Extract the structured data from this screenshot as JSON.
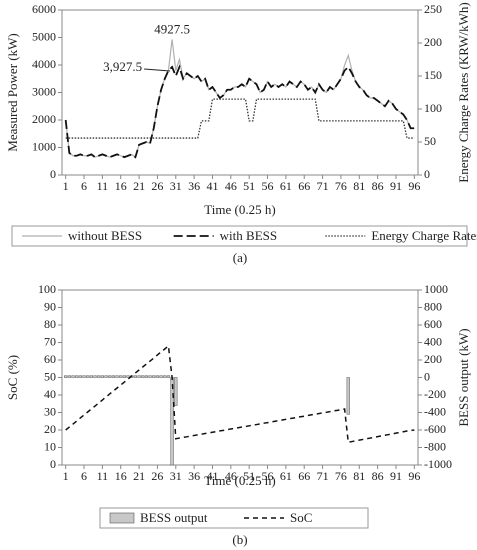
{
  "chart_data": [
    {
      "type": "line",
      "ylabel": "Measured Power (kW)",
      "y2label": "Energy Charge Rates (KRW/kWh)",
      "xlabel": "Time (0.25 h)",
      "caption": "(a)",
      "x": [
        1,
        2,
        3,
        4,
        5,
        6,
        7,
        8,
        9,
        10,
        11,
        12,
        13,
        14,
        15,
        16,
        17,
        18,
        19,
        20,
        21,
        22,
        23,
        24,
        25,
        26,
        27,
        28,
        29,
        30,
        31,
        32,
        33,
        34,
        35,
        36,
        37,
        38,
        39,
        40,
        41,
        42,
        43,
        44,
        45,
        46,
        47,
        48,
        49,
        50,
        51,
        52,
        53,
        54,
        55,
        56,
        57,
        58,
        59,
        60,
        61,
        62,
        63,
        64,
        65,
        66,
        67,
        68,
        69,
        70,
        71,
        72,
        73,
        74,
        75,
        76,
        77,
        78,
        79,
        80,
        81,
        82,
        83,
        84,
        85,
        86,
        87,
        88,
        89,
        90,
        91,
        92,
        93,
        94,
        95,
        96
      ],
      "xlim": [
        0,
        97
      ],
      "xticks": [
        1,
        6,
        11,
        16,
        21,
        26,
        31,
        36,
        41,
        46,
        51,
        56,
        61,
        66,
        71,
        76,
        81,
        86,
        91,
        96
      ],
      "ylim": [
        0,
        6000
      ],
      "yticks": [
        0,
        1000,
        2000,
        3000,
        4000,
        5000,
        6000
      ],
      "y2lim": [
        0,
        250
      ],
      "y2ticks": [
        0,
        50,
        100,
        150,
        200,
        250
      ],
      "grid": false,
      "series": [
        {
          "name": "without BESS",
          "color": "#b0b0b0",
          "dash": "none",
          "width": 1.2,
          "values": [
            2000,
            800,
            700,
            700,
            750,
            700,
            700,
            750,
            650,
            700,
            750,
            700,
            650,
            700,
            750,
            700,
            650,
            700,
            750,
            650,
            1100,
            1150,
            1200,
            1150,
            1700,
            2500,
            3100,
            3500,
            3800,
            4927.5,
            3800,
            4200,
            3500,
            3700,
            3600,
            3500,
            3600,
            3400,
            3500,
            3100,
            3200,
            3000,
            2800,
            2900,
            3100,
            3100,
            3200,
            3200,
            3300,
            3200,
            3500,
            3400,
            3300,
            3000,
            3100,
            3400,
            3200,
            3300,
            3200,
            3300,
            3200,
            3400,
            3300,
            3200,
            3400,
            3300,
            3100,
            3200,
            3000,
            3300,
            3100,
            3000,
            3200,
            3100,
            3300,
            3500,
            4000,
            4350,
            3800,
            3400,
            3200,
            3100,
            2900,
            2800,
            2800,
            2700,
            2600,
            2500,
            2700,
            2600,
            2400,
            2300,
            2200,
            2000,
            1700,
            1700
          ]
        },
        {
          "name": "with BESS",
          "color": "#111111",
          "dash": "9,4",
          "width": 1.8,
          "values": [
            2000,
            800,
            700,
            700,
            750,
            700,
            700,
            750,
            650,
            700,
            750,
            700,
            650,
            700,
            750,
            700,
            650,
            700,
            750,
            650,
            1100,
            1150,
            1200,
            1150,
            1700,
            2500,
            3100,
            3500,
            3800,
            3927.5,
            3600,
            3927.5,
            3500,
            3700,
            3600,
            3500,
            3600,
            3400,
            3500,
            3100,
            3200,
            3000,
            2800,
            2900,
            3100,
            3100,
            3200,
            3200,
            3300,
            3200,
            3500,
            3400,
            3300,
            3000,
            3100,
            3400,
            3200,
            3300,
            3200,
            3300,
            3200,
            3400,
            3300,
            3200,
            3400,
            3300,
            3100,
            3200,
            3000,
            3300,
            3100,
            3000,
            3200,
            3100,
            3300,
            3500,
            3800,
            3927.5,
            3700,
            3400,
            3200,
            3100,
            2900,
            2800,
            2800,
            2700,
            2600,
            2500,
            2700,
            2600,
            2400,
            2300,
            2200,
            2000,
            1700,
            1700
          ]
        },
        {
          "name": "Energy Charge Rates",
          "color": "#333333",
          "dash": "1.5,1.5",
          "width": 1.3,
          "axis": "y2",
          "values": [
            56,
            56,
            56,
            56,
            56,
            56,
            56,
            56,
            56,
            56,
            56,
            56,
            56,
            56,
            56,
            56,
            56,
            56,
            56,
            56,
            56,
            56,
            56,
            56,
            56,
            56,
            56,
            56,
            56,
            56,
            56,
            56,
            56,
            56,
            56,
            56,
            56,
            82,
            82,
            82,
            115,
            115,
            115,
            115,
            115,
            115,
            115,
            115,
            115,
            115,
            82,
            82,
            115,
            115,
            115,
            115,
            115,
            115,
            115,
            115,
            115,
            115,
            115,
            115,
            115,
            115,
            115,
            115,
            115,
            82,
            82,
            82,
            82,
            82,
            82,
            82,
            82,
            82,
            82,
            82,
            82,
            82,
            82,
            82,
            82,
            82,
            82,
            82,
            82,
            82,
            82,
            82,
            82,
            56,
            56,
            56
          ]
        }
      ],
      "annotations": [
        {
          "text": "4927.5",
          "x": 30,
          "y": 4927.5
        },
        {
          "text": "3,927.5",
          "x": 30,
          "y": 3927.5
        }
      ]
    },
    {
      "type": "combo",
      "ylabel": "SoC (%)",
      "y2label": "BESS output (kW)",
      "xlabel": "Time (0.25 h)",
      "caption": "(b)",
      "x": [
        1,
        2,
        3,
        4,
        5,
        6,
        7,
        8,
        9,
        10,
        11,
        12,
        13,
        14,
        15,
        16,
        17,
        18,
        19,
        20,
        21,
        22,
        23,
        24,
        25,
        26,
        27,
        28,
        29,
        30,
        31,
        32,
        33,
        34,
        35,
        36,
        37,
        38,
        39,
        40,
        41,
        42,
        43,
        44,
        45,
        46,
        47,
        48,
        49,
        50,
        51,
        52,
        53,
        54,
        55,
        56,
        57,
        58,
        59,
        60,
        61,
        62,
        63,
        64,
        65,
        66,
        67,
        68,
        69,
        70,
        71,
        72,
        73,
        74,
        75,
        76,
        77,
        78,
        79,
        80,
        81,
        82,
        83,
        84,
        85,
        86,
        87,
        88,
        89,
        90,
        91,
        92,
        93,
        94,
        95,
        96
      ],
      "xlim": [
        0,
        97
      ],
      "xticks": [
        1,
        6,
        11,
        16,
        21,
        26,
        31,
        36,
        41,
        46,
        51,
        56,
        61,
        66,
        71,
        76,
        81,
        86,
        91,
        96
      ],
      "ylim": [
        0,
        100
      ],
      "yticks": [
        0,
        10,
        20,
        30,
        40,
        50,
        60,
        70,
        80,
        90,
        100
      ],
      "y2lim": [
        -1000,
        1000
      ],
      "y2ticks": [
        -1000,
        -800,
        -600,
        -400,
        -200,
        0,
        200,
        400,
        600,
        800,
        1000
      ],
      "grid": false,
      "series": [
        {
          "name": "BESS output",
          "kind": "bar",
          "color": "#c8c8c8",
          "axis": "y2",
          "values": [
            20,
            20,
            20,
            20,
            20,
            20,
            20,
            20,
            20,
            20,
            20,
            20,
            20,
            20,
            20,
            20,
            20,
            20,
            20,
            20,
            20,
            20,
            20,
            20,
            20,
            20,
            20,
            20,
            20,
            -1000,
            -320,
            0,
            0,
            0,
            0,
            0,
            0,
            0,
            0,
            0,
            0,
            0,
            0,
            0,
            0,
            0,
            0,
            0,
            0,
            0,
            0,
            0,
            0,
            0,
            0,
            0,
            0,
            0,
            0,
            0,
            0,
            0,
            0,
            0,
            0,
            0,
            0,
            0,
            0,
            0,
            0,
            0,
            0,
            0,
            0,
            0,
            0,
            -420,
            0,
            0,
            0,
            0,
            0,
            0,
            0,
            0,
            0,
            0,
            0,
            0,
            0,
            0,
            0,
            0,
            0,
            0
          ]
        },
        {
          "name": "SoC",
          "kind": "line",
          "color": "#111111",
          "dash": "5,4",
          "width": 1.5,
          "values": [
            20,
            21.7,
            23.4,
            25.1,
            26.9,
            28.6,
            30.3,
            32,
            33.7,
            35.4,
            37.1,
            38.9,
            40.6,
            42.3,
            44,
            45.7,
            47.4,
            49.1,
            50.9,
            52.6,
            54.3,
            56,
            57.7,
            59.4,
            61.1,
            62.9,
            64.6,
            66.3,
            68,
            50,
            15,
            15.4,
            15.8,
            16.1,
            16.5,
            16.9,
            17.2,
            17.6,
            18,
            18.3,
            18.7,
            19.1,
            19.5,
            19.8,
            20.2,
            20.6,
            20.9,
            21.3,
            21.7,
            22,
            22.4,
            22.8,
            23.1,
            23.5,
            23.9,
            24.2,
            24.6,
            25,
            25.3,
            25.7,
            26.1,
            26.5,
            26.8,
            27.2,
            27.6,
            27.9,
            28.3,
            28.7,
            29,
            29.4,
            29.8,
            30.1,
            30.5,
            30.9,
            31.2,
            31.6,
            32,
            13,
            13.4,
            13.8,
            14.2,
            14.6,
            15,
            15.4,
            15.8,
            16.2,
            16.6,
            17,
            17.4,
            17.8,
            18.2,
            18.6,
            19,
            19.4,
            19.7,
            20
          ]
        }
      ]
    }
  ]
}
